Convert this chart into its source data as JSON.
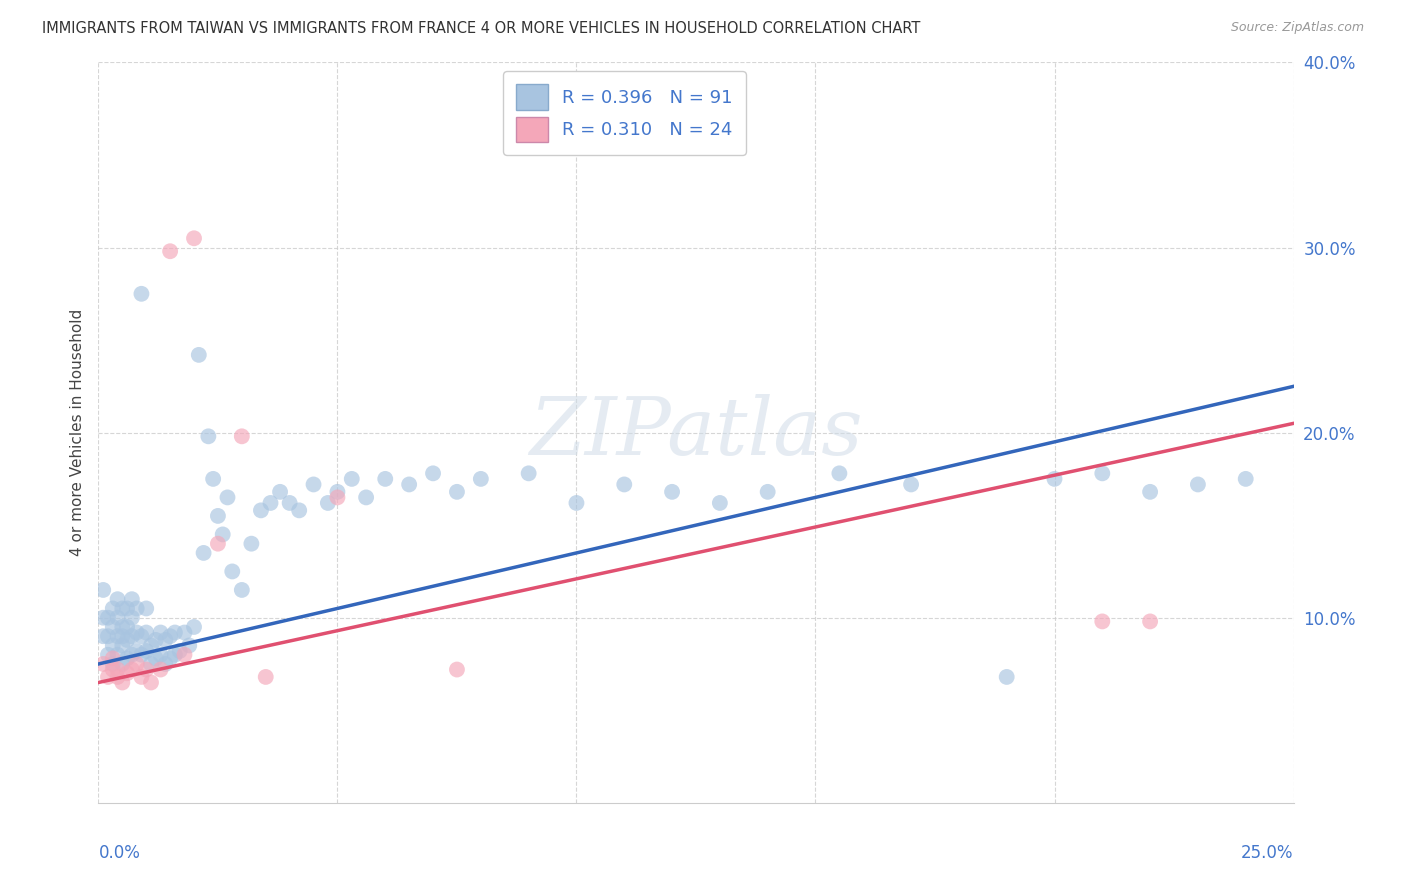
{
  "title": "IMMIGRANTS FROM TAIWAN VS IMMIGRANTS FROM FRANCE 4 OR MORE VEHICLES IN HOUSEHOLD CORRELATION CHART",
  "source": "Source: ZipAtlas.com",
  "xlabel_bottom_left": "0.0%",
  "xlabel_bottom_right": "25.0%",
  "ylabel": "4 or more Vehicles in Household",
  "xmin": 0.0,
  "xmax": 0.25,
  "ymin": 0.0,
  "ymax": 0.4,
  "yticks": [
    0.1,
    0.2,
    0.3,
    0.4
  ],
  "ytick_labels": [
    "10.0%",
    "20.0%",
    "30.0%",
    "40.0%"
  ],
  "taiwan_color": "#a8c4e0",
  "france_color": "#f4a7b9",
  "taiwan_line_color": "#3366bb",
  "france_line_color": "#e05070",
  "taiwan_trend_x0": 0.0,
  "taiwan_trend_x1": 0.25,
  "taiwan_trend_y0": 0.075,
  "taiwan_trend_y1": 0.225,
  "france_trend_x0": 0.0,
  "france_trend_x1": 0.25,
  "france_trend_y0": 0.065,
  "france_trend_y1": 0.205,
  "taiwan_x": [
    0.001,
    0.001,
    0.001,
    0.002,
    0.002,
    0.002,
    0.003,
    0.003,
    0.003,
    0.003,
    0.004,
    0.004,
    0.004,
    0.004,
    0.005,
    0.005,
    0.005,
    0.005,
    0.005,
    0.006,
    0.006,
    0.006,
    0.006,
    0.007,
    0.007,
    0.007,
    0.007,
    0.008,
    0.008,
    0.008,
    0.009,
    0.009,
    0.009,
    0.01,
    0.01,
    0.01,
    0.011,
    0.011,
    0.012,
    0.012,
    0.013,
    0.013,
    0.014,
    0.014,
    0.015,
    0.015,
    0.016,
    0.016,
    0.017,
    0.018,
    0.019,
    0.02,
    0.021,
    0.022,
    0.023,
    0.024,
    0.025,
    0.026,
    0.027,
    0.028,
    0.03,
    0.032,
    0.034,
    0.036,
    0.038,
    0.04,
    0.042,
    0.045,
    0.048,
    0.05,
    0.053,
    0.056,
    0.06,
    0.065,
    0.07,
    0.075,
    0.08,
    0.09,
    0.1,
    0.11,
    0.12,
    0.13,
    0.14,
    0.155,
    0.17,
    0.19,
    0.2,
    0.21,
    0.22,
    0.23,
    0.24
  ],
  "taiwan_y": [
    0.09,
    0.1,
    0.115,
    0.08,
    0.09,
    0.1,
    0.075,
    0.085,
    0.095,
    0.105,
    0.08,
    0.09,
    0.1,
    0.11,
    0.075,
    0.085,
    0.09,
    0.095,
    0.105,
    0.078,
    0.088,
    0.095,
    0.105,
    0.08,
    0.09,
    0.1,
    0.11,
    0.082,
    0.092,
    0.105,
    0.08,
    0.09,
    0.275,
    0.082,
    0.092,
    0.105,
    0.075,
    0.085,
    0.078,
    0.088,
    0.08,
    0.092,
    0.075,
    0.088,
    0.078,
    0.09,
    0.08,
    0.092,
    0.082,
    0.092,
    0.085,
    0.095,
    0.242,
    0.135,
    0.198,
    0.175,
    0.155,
    0.145,
    0.165,
    0.125,
    0.115,
    0.14,
    0.158,
    0.162,
    0.168,
    0.162,
    0.158,
    0.172,
    0.162,
    0.168,
    0.175,
    0.165,
    0.175,
    0.172,
    0.178,
    0.168,
    0.175,
    0.178,
    0.162,
    0.172,
    0.168,
    0.162,
    0.168,
    0.178,
    0.172,
    0.068,
    0.175,
    0.178,
    0.168,
    0.172,
    0.175
  ],
  "france_x": [
    0.001,
    0.002,
    0.003,
    0.003,
    0.004,
    0.004,
    0.005,
    0.006,
    0.007,
    0.008,
    0.009,
    0.01,
    0.011,
    0.013,
    0.015,
    0.018,
    0.02,
    0.025,
    0.03,
    0.035,
    0.05,
    0.075,
    0.21,
    0.22
  ],
  "france_y": [
    0.075,
    0.068,
    0.078,
    0.072,
    0.072,
    0.068,
    0.065,
    0.07,
    0.072,
    0.075,
    0.068,
    0.072,
    0.065,
    0.072,
    0.298,
    0.08,
    0.305,
    0.14,
    0.198,
    0.068,
    0.165,
    0.072,
    0.098,
    0.098
  ],
  "background_color": "#ffffff",
  "grid_color": "#cccccc",
  "watermark": "ZIPatlas",
  "legend_taiwan_label": "R = 0.396   N = 91",
  "legend_france_label": "R = 0.310   N = 24",
  "legend_taiwan_color": "#a8c4e0",
  "legend_france_color": "#f4a7b9"
}
